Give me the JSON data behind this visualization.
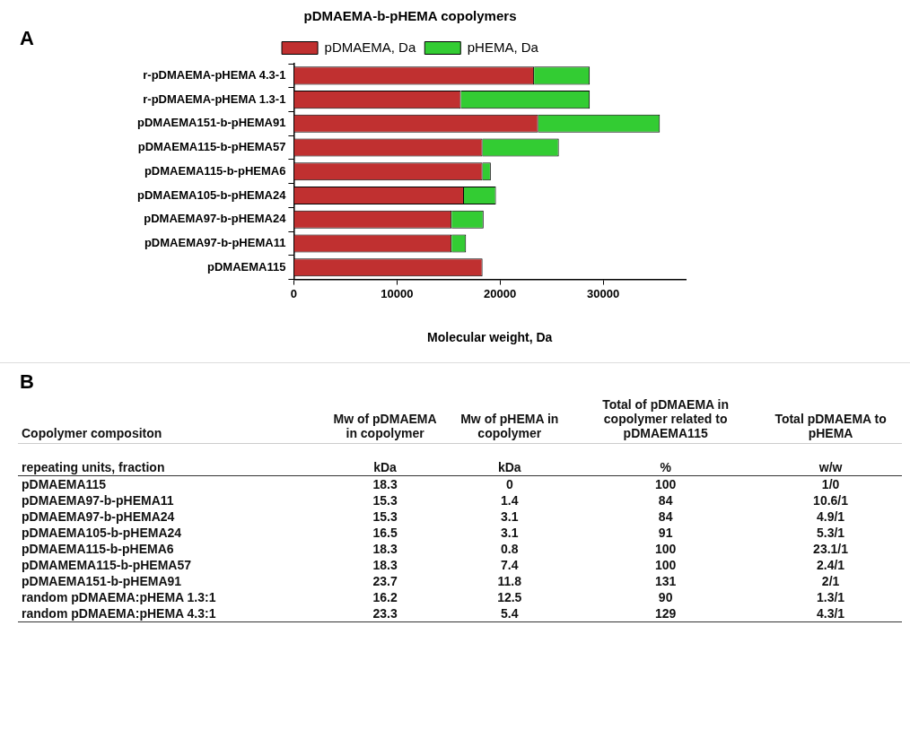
{
  "chart_data": [
    {
      "type": "bar",
      "orientation": "horizontal",
      "stacked": true,
      "title": "pDMAEMA-b-pHEMA copolymers",
      "xlabel": "Molecular weight, Da",
      "annotations": [
        "A"
      ],
      "categories": [
        "r-pDMAEMA-pHEMA 4.3-1",
        "r-pDMAEMA-pHEMA 1.3-1",
        "pDMAEMA151-b-pHEMA91",
        "pDMAEMA115-b-pHEMA57",
        "pDMAEMA115-b-pHEMA6",
        "pDMAEMA105-b-pHEMA24",
        "pDMAEMA97-b-pHEMA24",
        "pDMAEMA97-b-pHEMA11",
        "pDMAEMA115"
      ],
      "series": [
        {
          "name": "pDMAEMA, Da",
          "color": "#c03030",
          "values": [
            23300,
            16200,
            23700,
            18300,
            18300,
            16500,
            15300,
            15300,
            18300
          ]
        },
        {
          "name": "pHEMA, Da",
          "color": "#33cc33",
          "values": [
            5400,
            12500,
            11800,
            7400,
            800,
            3100,
            3100,
            1400,
            0
          ]
        }
      ],
      "xlim": [
        0,
        38000
      ],
      "xticks": [
        0,
        10000,
        20000,
        30000
      ],
      "grid": false,
      "legend": "top"
    },
    {
      "type": "other",
      "xlabel": "Copolymer compositon",
      "ylabel": "repeating units, fraction",
      "annotations": [
        "B",
        "kDa",
        "kDa",
        "%",
        "w/w"
      ],
      "categories": [
        "pDMAEMA115",
        "pDMAEMA97-b-pHEMA11",
        "pDMAEMA97-b-pHEMA24",
        "pDMAEMA105-b-pHEMA24",
        "pDMAEMA115-b-pHEMA6",
        "pDMAMEMA115-b-pHEMA57",
        "pDMAEMA151-b-pHEMA91",
        "random pDMAEMA:pHEMA 1.3:1",
        "random pDMAEMA:pHEMA 4.3:1"
      ],
      "series": [
        {
          "name": "Mw of pDMAEMA in copolymer",
          "values": [
            18.3,
            15.3,
            15.3,
            16.5,
            18.3,
            18.3,
            23.7,
            16.2,
            23.3
          ]
        },
        {
          "name": "Mw of pHEMA in copolymer",
          "values": [
            0,
            1.4,
            3.1,
            3.1,
            0.8,
            7.4,
            11.8,
            12.5,
            5.4
          ]
        },
        {
          "name": "Total of pDMAEMA in copolymer related to pDMAEMA115",
          "values": [
            100,
            84,
            84,
            91,
            100,
            100,
            131,
            90,
            129
          ]
        },
        {
          "name": "Total pDMAEMA to pHEMA",
          "values": [
            null,
            null,
            null,
            null,
            null,
            null,
            null,
            null,
            null
          ],
          "value_labels": [
            "1/0",
            "10.6/1",
            "4.9/1",
            "5.3/1",
            "23.1/1",
            "2.4/1",
            "2/1",
            "1.3/1",
            "4.3/1"
          ]
        }
      ],
      "data_labels": true
    }
  ]
}
